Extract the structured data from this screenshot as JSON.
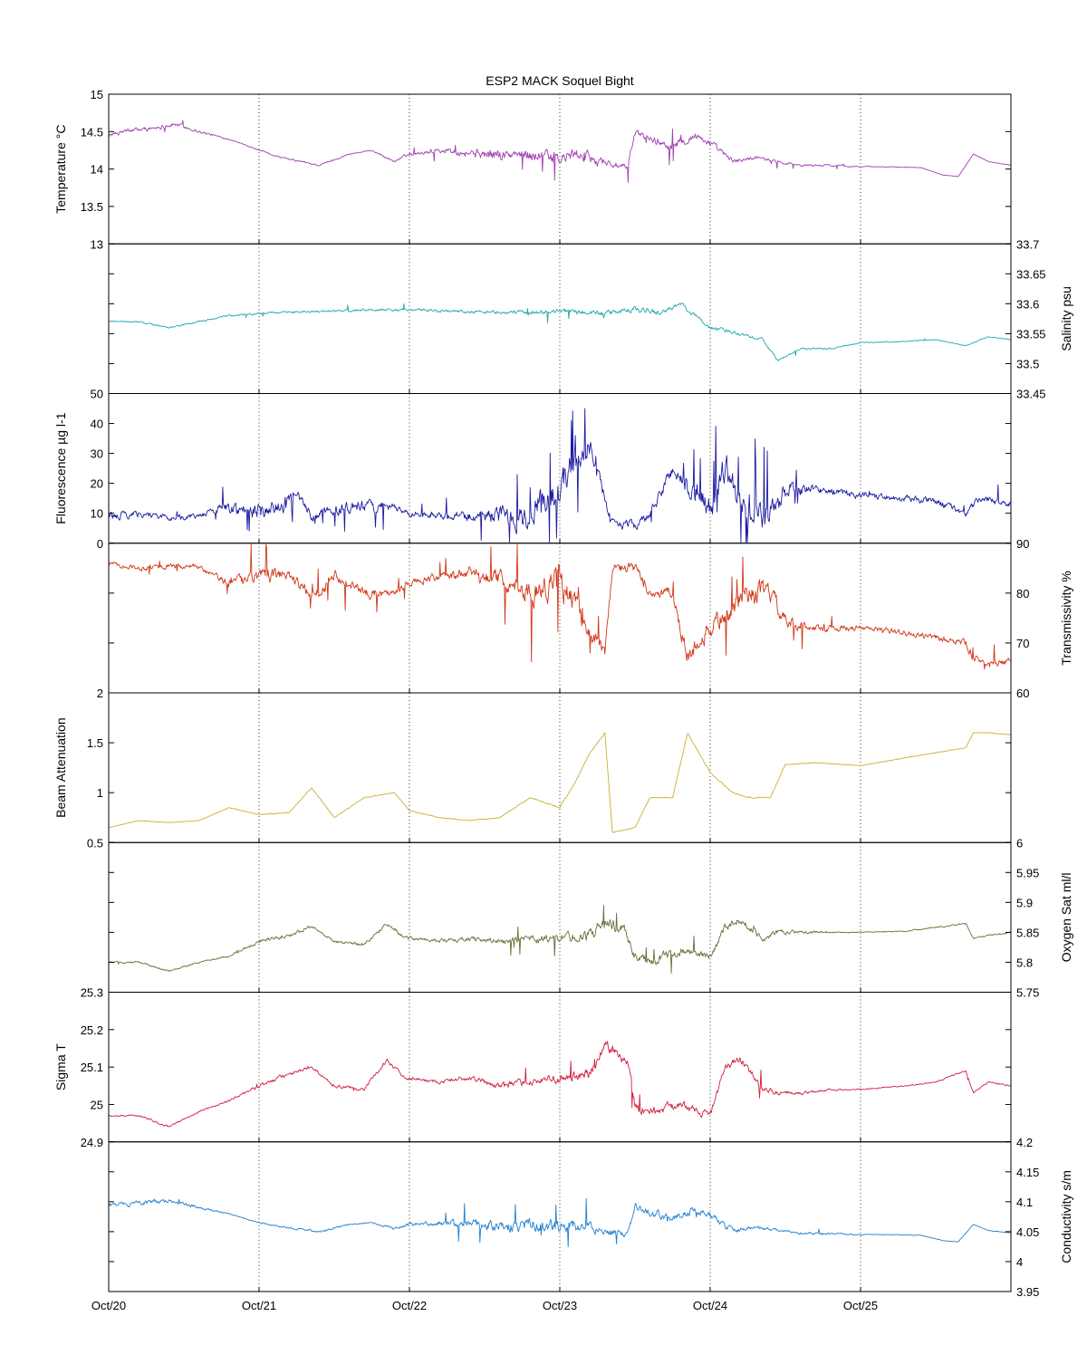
{
  "title": "ESP2 MACK  Soquel Bight",
  "chart_data": {
    "type": "line",
    "title": "ESP2 MACK  Soquel Bight",
    "x_ticks": [
      "Oct/20",
      "Oct/21",
      "Oct/22",
      "Oct/23",
      "Oct/24",
      "Oct/25"
    ],
    "x_range_days": [
      20,
      26
    ],
    "grid": "vertical dotted lines at each day",
    "panels": [
      {
        "name": "temperature",
        "ylabel": "Temperature °C",
        "axis_side": "left",
        "ylim": [
          13,
          15
        ],
        "ticks": [
          13,
          13.5,
          14,
          14.5,
          15
        ],
        "tick_labels": [
          "13",
          "13.5",
          "14",
          "14.5",
          "15"
        ],
        "color": "#a040b0",
        "noise_anchors": [
          0.6,
          0.6,
          0.1,
          0.3,
          0.15,
          0.6,
          1.6,
          1.8,
          0.9,
          1.2,
          0.5,
          0.3,
          0.08,
          0.05,
          0.05
        ],
        "series": {
          "x": [
            20.0,
            20.1,
            20.3,
            20.45,
            20.6,
            20.8,
            21.0,
            21.15,
            21.4,
            21.6,
            21.75,
            21.9,
            22.0,
            22.2,
            22.4,
            22.6,
            22.85,
            23.0,
            23.1,
            23.3,
            23.45,
            23.5,
            23.6,
            23.75,
            23.9,
            24.0,
            24.15,
            24.3,
            24.45,
            24.6,
            24.8,
            25.0,
            25.2,
            25.4,
            25.55,
            25.65,
            25.75,
            25.85,
            26.0
          ],
          "y": [
            14.45,
            14.5,
            14.55,
            14.6,
            14.5,
            14.4,
            14.25,
            14.15,
            14.05,
            14.2,
            14.25,
            14.1,
            14.2,
            14.25,
            14.22,
            14.18,
            14.2,
            14.12,
            14.2,
            14.1,
            14.0,
            14.5,
            14.4,
            14.3,
            14.45,
            14.35,
            14.1,
            14.15,
            14.1,
            14.05,
            14.05,
            14.03,
            14.03,
            14.02,
            13.92,
            13.9,
            14.2,
            14.1,
            14.05
          ]
        }
      },
      {
        "name": "salinity",
        "ylabel": "Salinity psu",
        "axis_side": "right",
        "ylim": [
          33.45,
          33.7
        ],
        "ticks": [
          33.45,
          33.5,
          33.55,
          33.6,
          33.65,
          33.7
        ],
        "tick_labels": [
          "33.45",
          "33.5",
          "33.55",
          "33.6",
          "33.65",
          "33.7"
        ],
        "color": "#20a8a8",
        "noise_anchors": [
          0.2,
          0.2,
          0.3,
          0.3,
          0.4,
          0.4,
          0.6,
          0.8,
          0.8,
          0.5,
          0.2,
          0.15,
          0.1,
          0.1
        ],
        "series": {
          "x": [
            20.0,
            20.2,
            20.4,
            20.6,
            20.8,
            21.0,
            21.2,
            21.5,
            21.8,
            22.0,
            22.2,
            22.5,
            22.8,
            23.0,
            23.3,
            23.5,
            23.7,
            23.8,
            24.0,
            24.2,
            24.35,
            24.45,
            24.6,
            24.8,
            25.0,
            25.3,
            25.5,
            25.7,
            25.85,
            26.0
          ],
          "y": [
            33.57,
            33.57,
            33.56,
            33.57,
            33.58,
            33.584,
            33.586,
            33.588,
            33.59,
            33.59,
            33.588,
            33.586,
            33.585,
            33.588,
            33.584,
            33.59,
            33.585,
            33.6,
            33.56,
            33.55,
            33.54,
            33.505,
            33.525,
            33.525,
            33.535,
            33.537,
            33.54,
            33.53,
            33.545,
            33.54
          ]
        }
      },
      {
        "name": "fluorescence",
        "ylabel": "Fluorescence µg l-1",
        "axis_side": "left",
        "ylim": [
          0,
          50
        ],
        "ticks": [
          0,
          10,
          20,
          30,
          40,
          50
        ],
        "tick_labels": [
          "0",
          "10",
          "20",
          "30",
          "40",
          "50"
        ],
        "color": "#1c1ca0",
        "noise_anchors": [
          1.2,
          0.8,
          0.8,
          2.5,
          1.2,
          1.8,
          0.8,
          1.2,
          3,
          5,
          1.2,
          1.5,
          4,
          4,
          1.2,
          1,
          1,
          1,
          1
        ],
        "series": {
          "x": [
            20.0,
            20.2,
            20.4,
            20.6,
            20.75,
            21.0,
            21.15,
            21.25,
            21.35,
            21.5,
            21.7,
            21.9,
            22.0,
            22.2,
            22.4,
            22.6,
            22.8,
            22.9,
            23.0,
            23.1,
            23.2,
            23.3,
            23.35,
            23.5,
            23.6,
            23.75,
            23.85,
            24.0,
            24.1,
            24.2,
            24.35,
            24.4,
            24.5,
            24.7,
            25.0,
            25.3,
            25.5,
            25.7,
            25.8,
            26.0
          ],
          "y": [
            9,
            10,
            8.5,
            9,
            12,
            10.5,
            12,
            16,
            9,
            11,
            12,
            12,
            10,
            9.5,
            9,
            9,
            9,
            15,
            18,
            28,
            32,
            15,
            7,
            6,
            9,
            25,
            18,
            11,
            26,
            13,
            7,
            9,
            17,
            18,
            16,
            15,
            14,
            10,
            15,
            13
          ]
        }
      },
      {
        "name": "transmissivity",
        "ylabel": "Transmissivity %",
        "axis_side": "right",
        "ylim": [
          60,
          90
        ],
        "ticks": [
          60,
          70,
          80,
          90
        ],
        "tick_labels": [
          "60",
          "70",
          "80",
          "90"
        ],
        "color": "#d03818",
        "noise_anchors": [
          0.6,
          0.8,
          0.8,
          2,
          1.5,
          1.5,
          1,
          1.5,
          2.5,
          4,
          1.5,
          1.5,
          3,
          3,
          1,
          0.8,
          0.8,
          1,
          1
        ],
        "series": {
          "x": [
            20.0,
            20.2,
            20.4,
            20.6,
            20.8,
            21.0,
            21.2,
            21.35,
            21.5,
            21.7,
            21.9,
            22.0,
            22.2,
            22.4,
            22.6,
            22.8,
            23.0,
            23.1,
            23.2,
            23.3,
            23.35,
            23.5,
            23.6,
            23.75,
            23.85,
            24.0,
            24.15,
            24.25,
            24.4,
            24.5,
            24.7,
            25.0,
            25.3,
            25.5,
            25.7,
            25.75,
            25.85,
            26.0
          ],
          "y": [
            86,
            85,
            85.5,
            85,
            82,
            83,
            84,
            79,
            84,
            80,
            80,
            82,
            83,
            84,
            83,
            80,
            82,
            78,
            72,
            68,
            85,
            85,
            80,
            80,
            67,
            73,
            77,
            80,
            80,
            74,
            73,
            73,
            72,
            71,
            70,
            67,
            66,
            66
          ]
        }
      },
      {
        "name": "beam_attenuation",
        "ylabel": "Beam Attenuation",
        "axis_side": "left",
        "ylim": [
          0.5,
          2
        ],
        "ticks": [
          0.5,
          1,
          1.5,
          2
        ],
        "tick_labels": [
          "0.5",
          "1",
          "1.5",
          "2"
        ],
        "color": "#c8b030",
        "noise_anchors": [
          0.03,
          0.04,
          0.04,
          0.1,
          0.08,
          0.08,
          0.05,
          0.08,
          0.12,
          0.18,
          0.08,
          0.08,
          0.15,
          0.15,
          0.05,
          0.04,
          0.04,
          0.05,
          0.05
        ],
        "series": {
          "x": [
            20.0,
            20.2,
            20.4,
            20.6,
            20.8,
            21.0,
            21.2,
            21.35,
            21.5,
            21.7,
            21.9,
            22.0,
            22.2,
            22.4,
            22.6,
            22.8,
            23.0,
            23.1,
            23.2,
            23.3,
            23.35,
            23.5,
            23.6,
            23.75,
            23.85,
            24.0,
            24.15,
            24.25,
            24.4,
            24.5,
            24.7,
            25.0,
            25.3,
            25.5,
            25.7,
            25.75,
            25.85,
            26.0
          ],
          "y": [
            0.65,
            0.72,
            0.7,
            0.72,
            0.85,
            0.78,
            0.8,
            1.05,
            0.75,
            0.95,
            1.0,
            0.82,
            0.75,
            0.72,
            0.75,
            0.95,
            0.85,
            1.1,
            1.4,
            1.6,
            0.6,
            0.65,
            0.95,
            0.95,
            1.6,
            1.2,
            1.0,
            0.95,
            0.95,
            1.28,
            1.3,
            1.27,
            1.35,
            1.4,
            1.45,
            1.6,
            1.6,
            1.58
          ]
        }
      },
      {
        "name": "oxygen_sat",
        "ylabel": "Oxygen Sat ml/l",
        "axis_side": "right",
        "ylim": [
          5.75,
          6
        ],
        "ticks": [
          5.75,
          5.8,
          5.85,
          5.9,
          5.95,
          6
        ],
        "tick_labels": [
          "5.75",
          "5.8",
          "5.85",
          "5.9",
          "5.95",
          "6"
        ],
        "color": "#6e6e3a",
        "noise_anchors": [
          0.2,
          0.3,
          0.2,
          0.6,
          0.4,
          0.6,
          0.5,
          0.7,
          1,
          1.6,
          1.5,
          1,
          1.1,
          0.5,
          0.15,
          0.15,
          0.2,
          0.2
        ],
        "series": {
          "x": [
            20.0,
            20.2,
            20.4,
            20.6,
            20.8,
            21.0,
            21.2,
            21.35,
            21.5,
            21.7,
            21.85,
            21.95,
            22.0,
            22.2,
            22.4,
            22.6,
            22.8,
            23.0,
            23.2,
            23.3,
            23.45,
            23.5,
            23.6,
            23.8,
            24.0,
            24.1,
            24.2,
            24.35,
            24.45,
            24.6,
            24.8,
            25.0,
            25.3,
            25.5,
            25.7,
            25.75,
            25.85,
            26.0
          ],
          "y": [
            5.8,
            5.8,
            5.785,
            5.8,
            5.81,
            5.835,
            5.845,
            5.86,
            5.835,
            5.83,
            5.865,
            5.845,
            5.84,
            5.835,
            5.84,
            5.835,
            5.838,
            5.84,
            5.845,
            5.87,
            5.85,
            5.81,
            5.8,
            5.82,
            5.81,
            5.86,
            5.87,
            5.84,
            5.85,
            5.85,
            5.85,
            5.85,
            5.852,
            5.858,
            5.865,
            5.84,
            5.845,
            5.85
          ]
        }
      },
      {
        "name": "sigma_t",
        "ylabel": "Sigma T",
        "axis_side": "left",
        "ylim": [
          24.9,
          25.3
        ],
        "ticks": [
          24.9,
          25,
          25.1,
          25.2,
          25.3
        ],
        "tick_labels": [
          "24.9",
          "25",
          "25.1",
          "25.2",
          "25.3"
        ],
        "color": "#d02040",
        "noise_anchors": [
          0.2,
          0.3,
          0.2,
          0.6,
          0.4,
          0.6,
          0.5,
          0.7,
          1,
          1.6,
          1.5,
          1,
          1.1,
          0.5,
          0.15,
          0.15,
          0.2,
          0.2
        ],
        "series": {
          "x": [
            20.0,
            20.2,
            20.4,
            20.6,
            20.8,
            21.0,
            21.2,
            21.35,
            21.5,
            21.7,
            21.85,
            21.95,
            22.0,
            22.2,
            22.4,
            22.6,
            22.8,
            23.0,
            23.2,
            23.3,
            23.45,
            23.5,
            23.6,
            23.8,
            24.0,
            24.1,
            24.2,
            24.35,
            24.45,
            24.6,
            24.8,
            25.0,
            25.3,
            25.5,
            25.7,
            25.75,
            25.85,
            26.0
          ],
          "y": [
            24.97,
            24.97,
            24.94,
            24.98,
            25.01,
            25.05,
            25.08,
            25.1,
            25.05,
            25.04,
            25.12,
            25.08,
            25.07,
            25.06,
            25.07,
            25.05,
            25.06,
            25.07,
            25.08,
            25.16,
            25.12,
            25.0,
            24.98,
            25.0,
            24.97,
            25.1,
            25.12,
            25.04,
            25.03,
            25.03,
            25.04,
            25.04,
            25.05,
            25.06,
            25.09,
            25.03,
            25.06,
            25.05
          ]
        }
      },
      {
        "name": "conductivity",
        "ylabel": "Conductivity s/m",
        "axis_side": "right",
        "ylim": [
          3.95,
          4.2
        ],
        "ticks": [
          3.95,
          4,
          4.05,
          4.1,
          4.15,
          4.2
        ],
        "tick_labels": [
          "3.95",
          "4",
          "4.05",
          "4.1",
          "4.15",
          "4.2"
        ],
        "color": "#2080d0",
        "noise_anchors": [
          0.6,
          0.6,
          0.1,
          0.3,
          0.15,
          0.6,
          1.6,
          1.8,
          0.9,
          1.2,
          0.5,
          0.3,
          0.08,
          0.05,
          0.05
        ],
        "series": {
          "x": [
            20.0,
            20.1,
            20.3,
            20.45,
            20.6,
            20.8,
            21.0,
            21.15,
            21.4,
            21.6,
            21.75,
            21.9,
            22.0,
            22.2,
            22.4,
            22.6,
            22.85,
            23.0,
            23.1,
            23.3,
            23.45,
            23.5,
            23.6,
            23.75,
            23.9,
            24.0,
            24.15,
            24.3,
            24.45,
            24.6,
            24.8,
            25.0,
            25.2,
            25.4,
            25.55,
            25.65,
            25.75,
            25.85,
            26.0
          ],
          "y": [
            4.095,
            4.095,
            4.1,
            4.1,
            4.09,
            4.08,
            4.065,
            4.058,
            4.05,
            4.062,
            4.065,
            4.055,
            4.062,
            4.065,
            4.063,
            4.06,
            4.062,
            4.055,
            4.062,
            4.052,
            4.042,
            4.092,
            4.082,
            4.072,
            4.087,
            4.077,
            4.052,
            4.058,
            4.052,
            4.047,
            4.047,
            4.045,
            4.045,
            4.044,
            4.035,
            4.033,
            4.062,
            4.052,
            4.048
          ]
        }
      }
    ]
  }
}
